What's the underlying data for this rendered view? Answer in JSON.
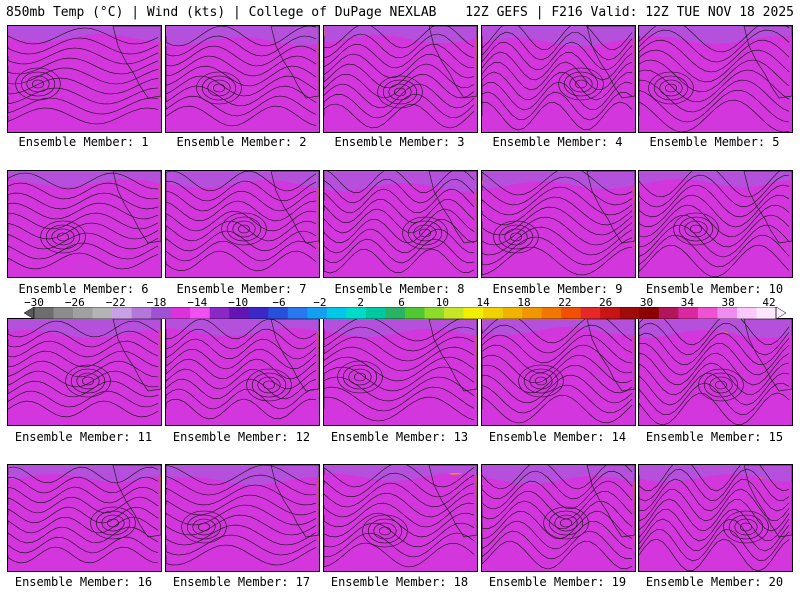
{
  "header": {
    "left": "850mb Temp (°C) | Wind (kts) | College of DuPage NEXLAB",
    "right": "12Z GEFS | F216 Valid: 12Z TUE NOV 18 2025"
  },
  "members": [
    {
      "label": "Ensemble Member: 1"
    },
    {
      "label": "Ensemble Member: 2"
    },
    {
      "label": "Ensemble Member: 3"
    },
    {
      "label": "Ensemble Member: 4"
    },
    {
      "label": "Ensemble Member: 5"
    },
    {
      "label": "Ensemble Member: 6"
    },
    {
      "label": "Ensemble Member: 7"
    },
    {
      "label": "Ensemble Member: 8"
    },
    {
      "label": "Ensemble Member: 9"
    },
    {
      "label": "Ensemble Member: 10"
    },
    {
      "label": "Ensemble Member: 11"
    },
    {
      "label": "Ensemble Member: 12"
    },
    {
      "label": "Ensemble Member: 13"
    },
    {
      "label": "Ensemble Member: 14"
    },
    {
      "label": "Ensemble Member: 15"
    },
    {
      "label": "Ensemble Member: 16"
    },
    {
      "label": "Ensemble Member: 17"
    },
    {
      "label": "Ensemble Member: 18"
    },
    {
      "label": "Ensemble Member: 19"
    },
    {
      "label": "Ensemble Member: 20"
    }
  ],
  "colorbar": {
    "ticks": [
      "−30",
      "−26",
      "−22",
      "−18",
      "−14",
      "−10",
      "−6",
      "−2",
      "2",
      "6",
      "10",
      "14",
      "18",
      "22",
      "26",
      "30",
      "34",
      "38",
      "42"
    ],
    "colors": [
      "#6e6e6e",
      "#8c8c8c",
      "#a0a0a0",
      "#b4b4b4",
      "#c8a0e6",
      "#b478dc",
      "#a050d2",
      "#dc32dc",
      "#f050f0",
      "#8c28c8",
      "#6414b4",
      "#3c28c8",
      "#2850dc",
      "#2878f0",
      "#14a0f0",
      "#00c8e6",
      "#00dcc8",
      "#00c8a0",
      "#28b464",
      "#50c832",
      "#8cdc28",
      "#c8e628",
      "#f0f000",
      "#f0d200",
      "#f0b400",
      "#f09600",
      "#f07800",
      "#f05000",
      "#e62828",
      "#c81414",
      "#a00a0a",
      "#8c0000",
      "#b4145a",
      "#dc28a0",
      "#f050d2",
      "#f08cf0",
      "#fac8fa",
      "#ffe6ff"
    ]
  }
}
